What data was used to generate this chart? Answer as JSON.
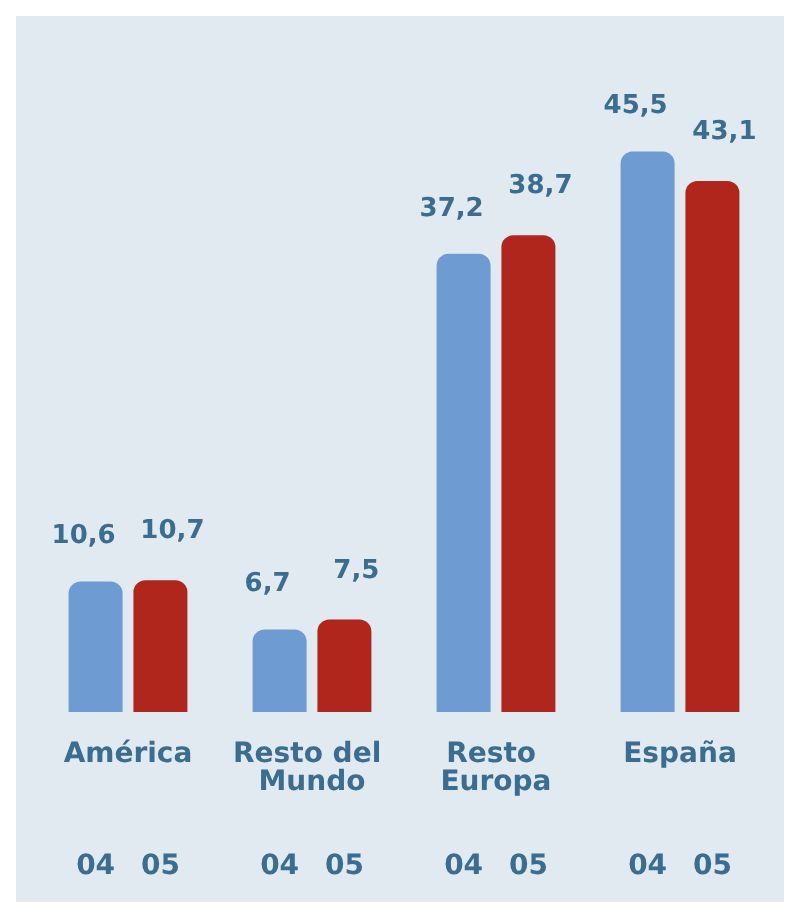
{
  "chart_data": {
    "type": "bar",
    "categories": [
      "América",
      "Resto del Mundo",
      "Resto Europa",
      "España"
    ],
    "series": [
      {
        "name": "04",
        "color": "#6f9bd3",
        "values": [
          10.6,
          6.7,
          37.2,
          45.5
        ],
        "value_labels": [
          "10,6",
          "6,7",
          "37,2",
          "45,5"
        ]
      },
      {
        "name": "05",
        "color": "#b0261c",
        "values": [
          10.7,
          7.5,
          38.7,
          43.1
        ],
        "value_labels": [
          "10,7",
          "7,5",
          "38,7",
          "43,1"
        ]
      }
    ],
    "grid": false,
    "legend": false
  }
}
